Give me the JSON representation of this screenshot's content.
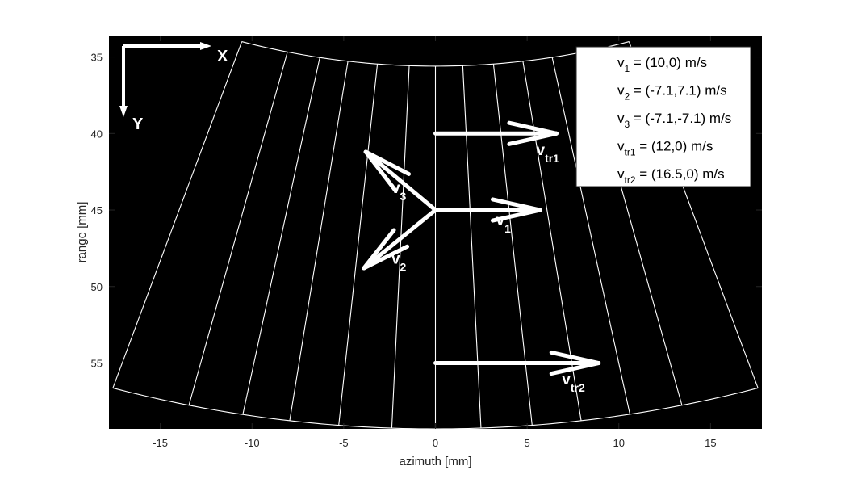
{
  "chart_data": {
    "type": "scatter",
    "title": "",
    "xlabel": "azimuth [mm]",
    "ylabel": "range [mm]",
    "xlim": [
      -17.8,
      17.8
    ],
    "ylim": [
      33.6,
      59.3
    ],
    "y_reversed": true,
    "grid": false,
    "background": "#000000",
    "line_color": "#ffffff",
    "xticks": [
      -15,
      -10,
      -5,
      0,
      5,
      10,
      15
    ],
    "yticks": [
      35,
      40,
      45,
      50,
      55
    ],
    "xtick_labels": [
      "-15",
      "-10",
      "-5",
      "0",
      "5",
      "10",
      "15"
    ],
    "ytick_labels": [
      "35",
      "40",
      "45",
      "50",
      "55"
    ],
    "sector": {
      "apex": [
        0,
        0
      ],
      "r_inner": 35.6,
      "r_outer": 59.3,
      "beam_angles_deg": [
        -17.25,
        -13.1,
        -10.2,
        -7.7,
        -5.1,
        -2.3,
        0,
        2.4,
        5.1,
        7.7,
        10.3,
        13.1,
        17.25
      ]
    },
    "vectors": [
      {
        "start": [
          0,
          45
        ],
        "end": [
          5.7,
          45
        ],
        "label": "v",
        "sub": "1",
        "label_pos": [
          3.3,
          46.0
        ]
      },
      {
        "start": [
          0,
          45
        ],
        "end": [
          -3.9,
          48.8
        ],
        "label": "v",
        "sub": "2",
        "label_pos": [
          -2.4,
          48.5
        ]
      },
      {
        "start": [
          0,
          45
        ],
        "end": [
          -3.8,
          41.2
        ],
        "label": "v",
        "sub": "3",
        "label_pos": [
          -2.4,
          43.9
        ]
      },
      {
        "start": [
          0,
          40
        ],
        "end": [
          6.6,
          40
        ],
        "label": "v",
        "sub": "tr1",
        "label_pos": [
          5.5,
          41.4
        ]
      },
      {
        "start": [
          0,
          55
        ],
        "end": [
          8.9,
          55
        ],
        "label": "v",
        "sub": "tr2",
        "label_pos": [
          6.9,
          56.4
        ]
      }
    ],
    "legend": {
      "position": "top-right",
      "entries": [
        {
          "symbol": "v",
          "sub": "1",
          "text": " = (10,0) m/s"
        },
        {
          "symbol": "v",
          "sub": "2",
          "text": " = (-7.1,7.1) m/s"
        },
        {
          "symbol": "v",
          "sub": "3",
          "text": " = (-7.1,-7.1) m/s"
        },
        {
          "symbol": "v",
          "sub": "tr1",
          "text": " = (12,0) m/s"
        },
        {
          "symbol": "v",
          "sub": "tr2",
          "text": " = (16.5,0) m/s"
        }
      ]
    },
    "axis_indicator": {
      "x_label": "X",
      "y_label": "Y"
    }
  }
}
